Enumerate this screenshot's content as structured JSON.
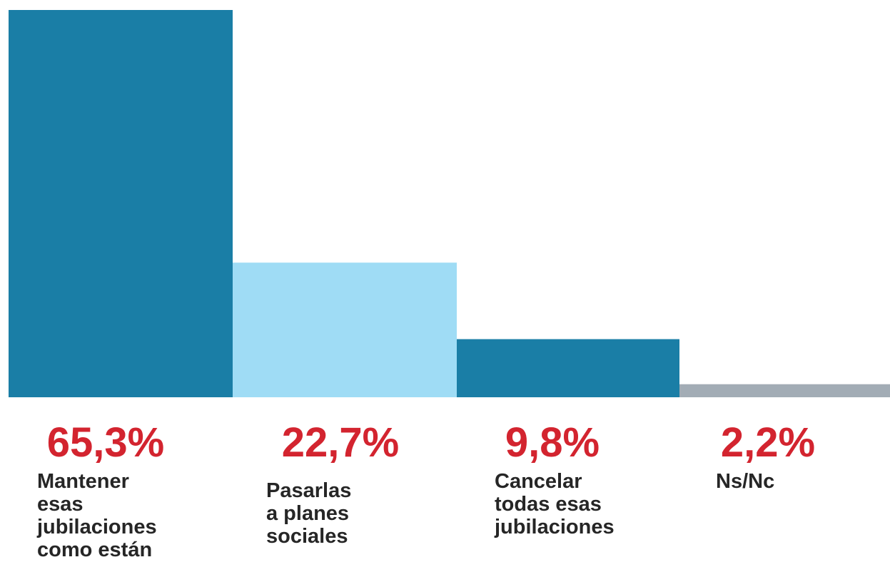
{
  "chart_data": {
    "type": "bar",
    "title": "",
    "xlabel": "",
    "ylabel": "",
    "ylim": [
      0,
      65.3
    ],
    "grid": false,
    "legend": "none",
    "categories": [
      [
        "Mantener",
        "esas",
        "jubilaciones",
        "como están"
      ],
      [
        "Pasarlas",
        "a planes",
        "sociales"
      ],
      [
        "Cancelar",
        "todas esas",
        "jubilaciones"
      ],
      [
        "Ns/Nc"
      ]
    ],
    "values": [
      65.3,
      22.7,
      9.8,
      2.2
    ],
    "data_labels": [
      "65,3%",
      "22,7%",
      "9,8%",
      "2,2%"
    ],
    "colors": [
      "#1a7ea6",
      "#9fdcf5",
      "#1a7ea6",
      "#a2acb5"
    ],
    "value_label_color": "#d3242f",
    "category_label_color": "#262626"
  }
}
